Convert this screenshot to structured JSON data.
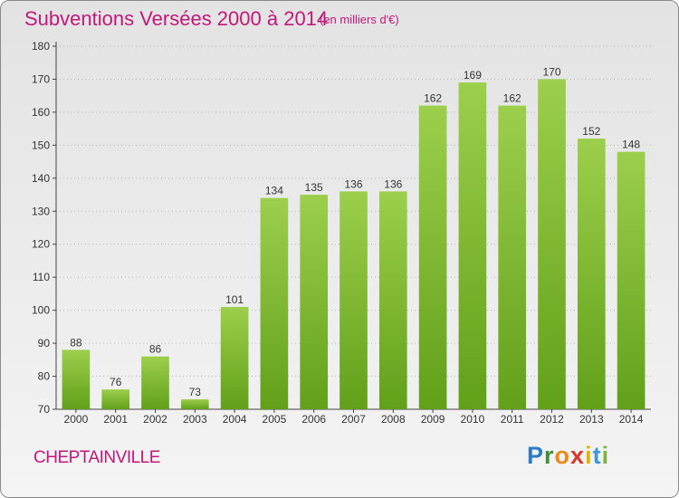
{
  "header": {
    "title": "Subventions Versées 2000 à 2014",
    "subtitle": "(en milliers d'€)"
  },
  "footer": {
    "commune": "CHEPTAINVILLE",
    "logo_letters": [
      "P",
      "r",
      "o",
      "x",
      "i",
      "t",
      "i"
    ]
  },
  "colors": {
    "title": "#c2187a",
    "bar_top": "#9ccf4c",
    "bar_bottom": "#62a01a",
    "axis": "#444444",
    "grid": "#b8b8b8"
  },
  "chart_data": {
    "type": "bar",
    "title": "Subventions Versées 2000 à 2014",
    "subtitle": "(en milliers d'€)",
    "categories": [
      "2000",
      "2001",
      "2002",
      "2003",
      "2004",
      "2005",
      "2006",
      "2007",
      "2008",
      "2009",
      "2010",
      "2011",
      "2012",
      "2013",
      "2014"
    ],
    "values": [
      88,
      76,
      86,
      73,
      101,
      134,
      135,
      136,
      136,
      162,
      169,
      162,
      170,
      152,
      148
    ],
    "ylim": [
      70,
      180
    ],
    "yticks": [
      70,
      80,
      90,
      100,
      110,
      120,
      130,
      140,
      150,
      160,
      170,
      180
    ],
    "xlabel": "",
    "ylabel": "",
    "grid": true
  }
}
